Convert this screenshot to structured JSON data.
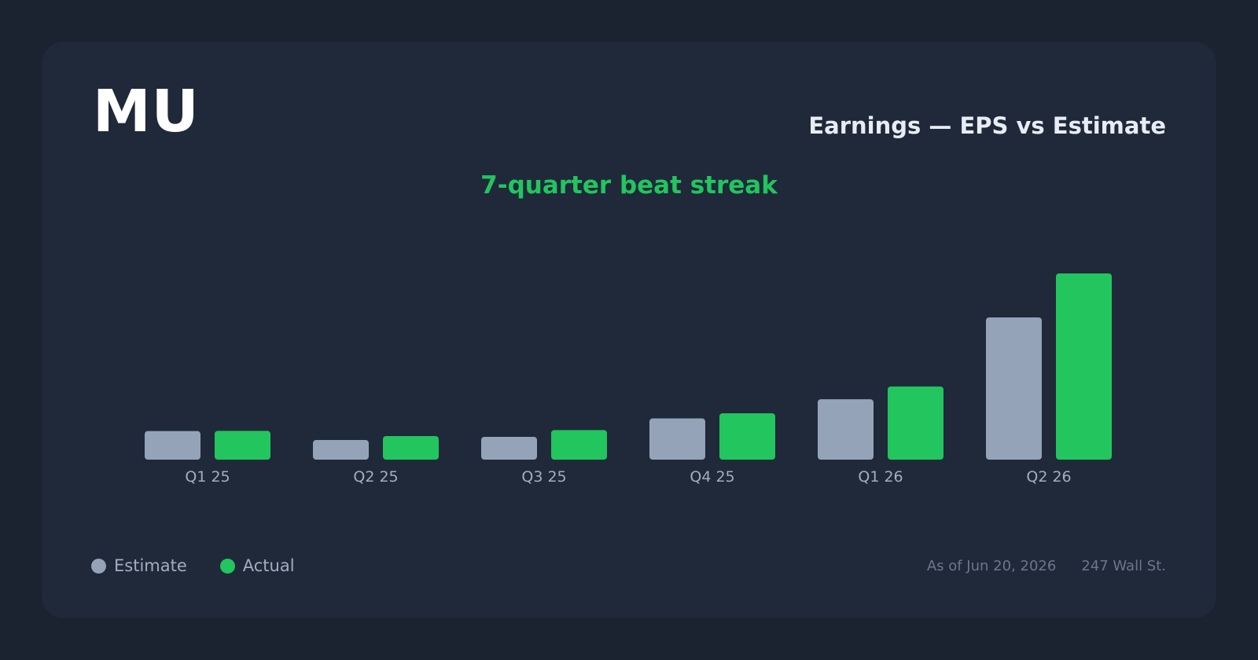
{
  "header": {
    "ticker": "MU",
    "title": "Earnings — EPS vs Estimate",
    "subtitle": "7-quarter beat streak"
  },
  "legend": [
    {
      "label": "Estimate",
      "color": "#94a3b8"
    },
    {
      "label": "Actual",
      "color": "#22c55e"
    }
  ],
  "footer": {
    "as_of": "As of Jun 20, 2026",
    "source": "247 Wall St."
  },
  "colors": {
    "estimate": "#94a3b8",
    "actual": "#22c55e",
    "tick_label": "#a3adbf"
  },
  "chart_data": {
    "type": "bar",
    "title": "Earnings — EPS vs Estimate",
    "categories": [
      "Q1 25",
      "Q2 25",
      "Q3 25",
      "Q4 25",
      "Q1 26",
      "Q2 26"
    ],
    "series": [
      {
        "name": "Estimate",
        "values": [
          1.43,
          0.98,
          1.14,
          2.06,
          3.02,
          7.11
        ]
      },
      {
        "name": "Actual",
        "values": [
          1.44,
          1.18,
          1.48,
          2.32,
          3.66,
          9.31
        ]
      }
    ],
    "ylim": [
      0,
      9.31
    ],
    "grid": false,
    "legend": "bottom-left"
  }
}
